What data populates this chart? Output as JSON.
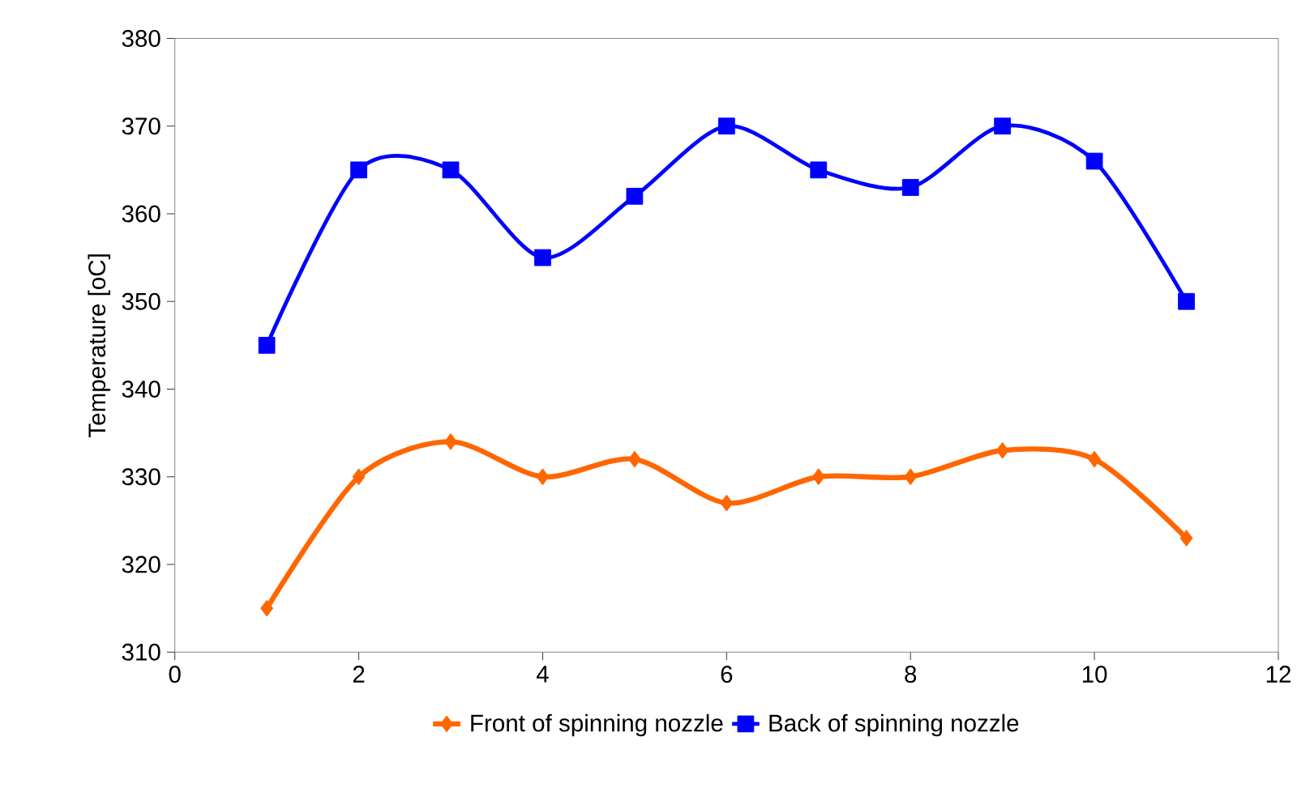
{
  "chart_data": {
    "type": "line",
    "ylabel": "Temperature [oC]",
    "x": [
      1,
      2,
      3,
      4,
      5,
      6,
      7,
      8,
      9,
      10,
      11
    ],
    "series": [
      {
        "name": "Front of spinning nozzle",
        "color": "#ff6600",
        "marker": "diamond",
        "values": [
          315,
          330,
          334,
          330,
          332,
          327,
          330,
          330,
          333,
          332,
          323
        ]
      },
      {
        "name": "Back of spinning nozzle",
        "color": "#0000ff",
        "marker": "square",
        "values": [
          345,
          365,
          365,
          355,
          362,
          370,
          365,
          363,
          370,
          366,
          350
        ]
      }
    ],
    "xlim": [
      0,
      12
    ],
    "xticks": [
      0,
      2,
      4,
      6,
      8,
      10,
      12
    ],
    "ylim": [
      310,
      380
    ],
    "yticks": [
      310,
      320,
      330,
      340,
      350,
      360,
      370,
      380
    ],
    "grid": false,
    "legend": "bottom",
    "line_style": "solid"
  }
}
